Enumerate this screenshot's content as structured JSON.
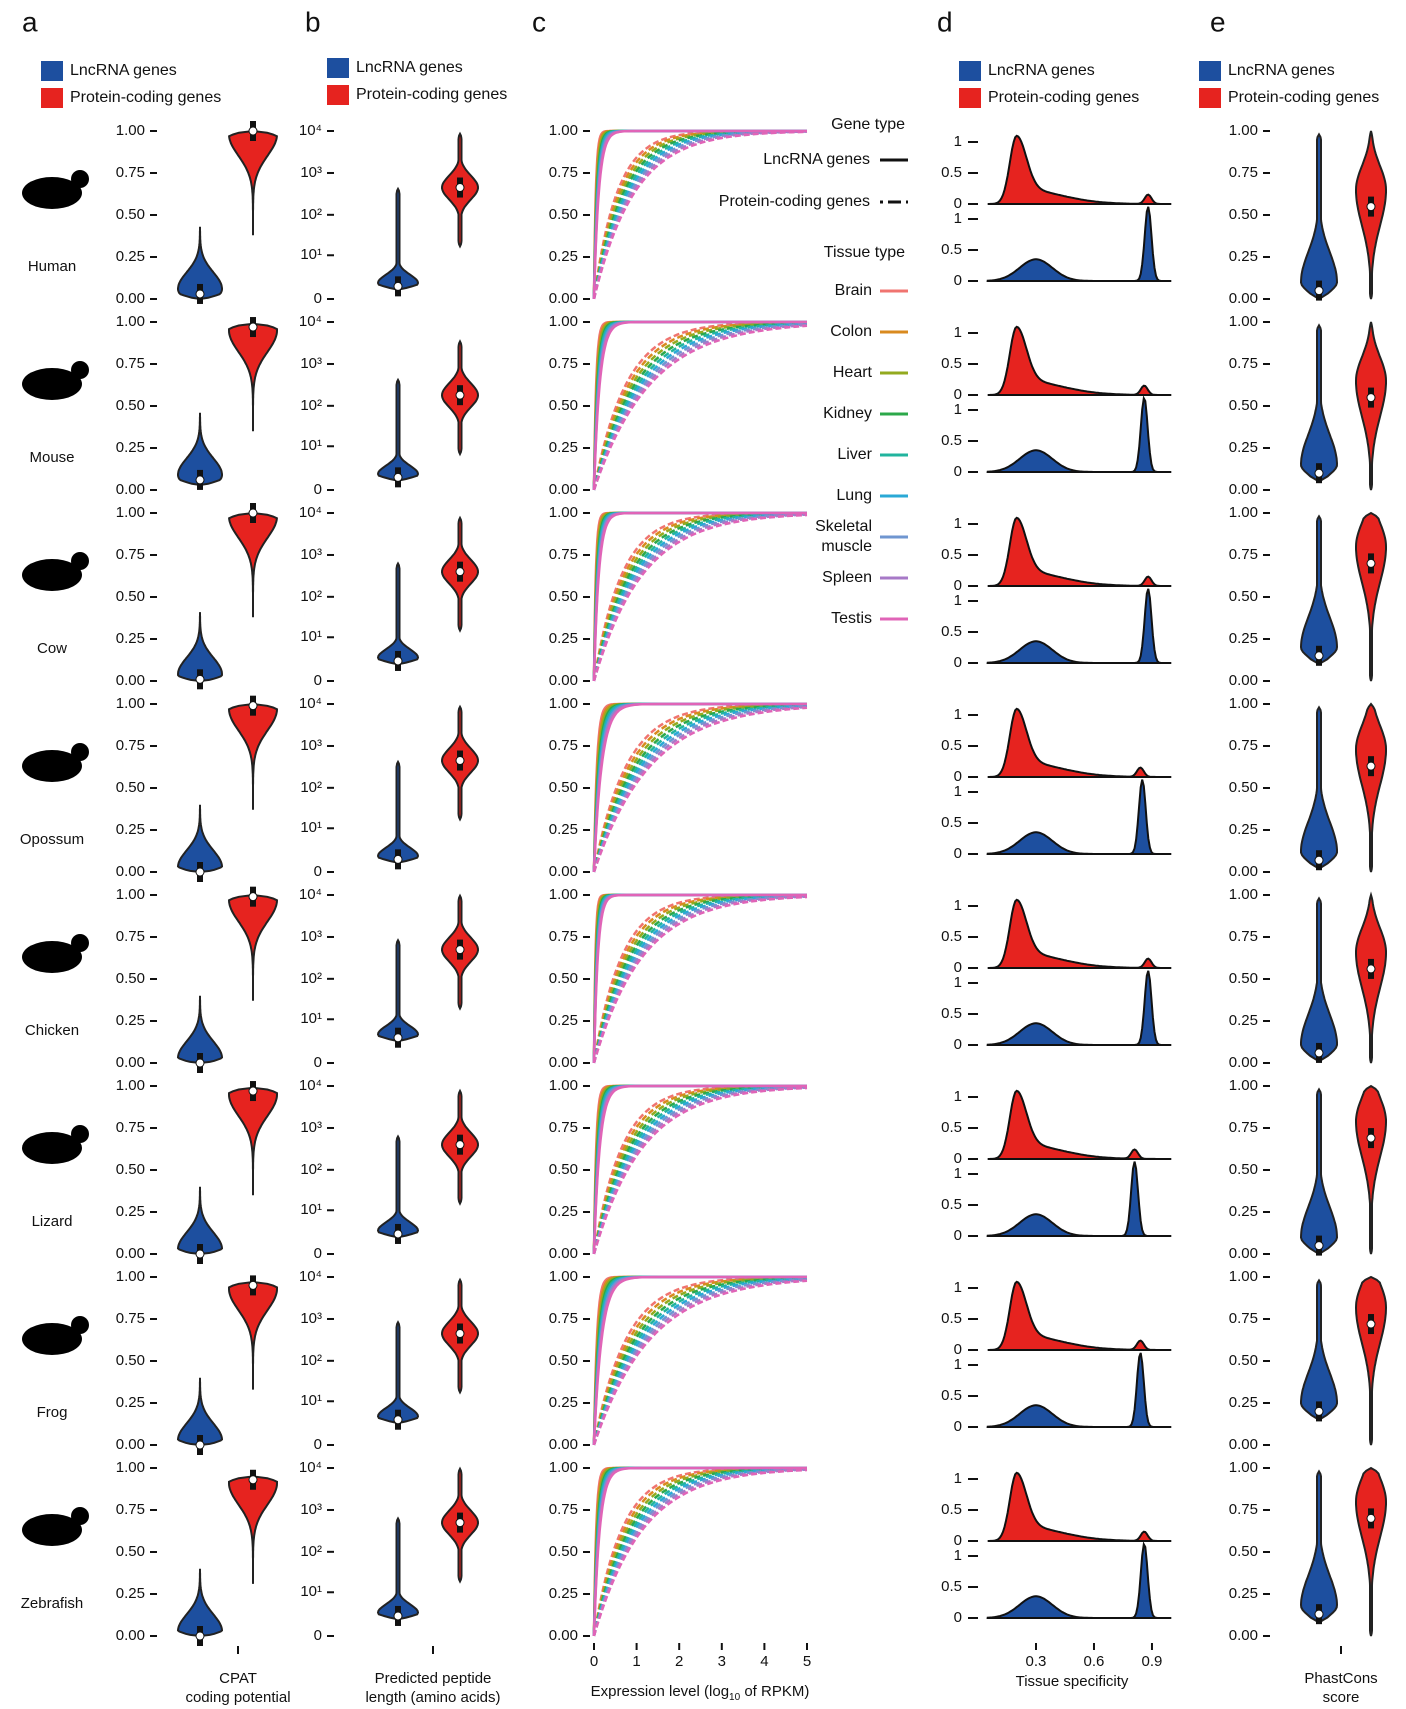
{
  "panel_labels": [
    "a",
    "b",
    "c",
    "d",
    "e"
  ],
  "legend": {
    "lncrna": "LncRNA genes",
    "protein": "Protein-coding genes"
  },
  "colors": {
    "lncrna": "#1d4f9f",
    "protein": "#e6231f"
  },
  "species": [
    "Human",
    "Mouse",
    "Cow",
    "Opossum",
    "Chicken",
    "Lizard",
    "Frog",
    "Zebrafish"
  ],
  "a": {
    "xlabel": [
      "CPAT",
      "coding potential"
    ],
    "ylim": [
      0,
      1
    ],
    "yticks": [
      {
        "value": 0,
        "label": "0.00"
      },
      {
        "value": 0.25,
        "label": "0.25"
      },
      {
        "value": 0.5,
        "label": "0.50"
      },
      {
        "value": 0.75,
        "label": "0.75"
      },
      {
        "value": 1,
        "label": "1.00"
      }
    ],
    "lncrna": [
      0.03,
      0.06,
      0.01,
      0,
      0,
      0,
      0,
      0
    ],
    "protein": [
      1,
      0.97,
      1,
      0.99,
      0.99,
      0.97,
      0.95,
      0.93
    ]
  },
  "b": {
    "xlabel": [
      "Predicted peptide",
      "length (amino acids)"
    ],
    "ylim": [
      0,
      10000
    ],
    "log": true,
    "yticks": [
      0,
      {
        "value": 10,
        "label": "10¹"
      },
      {
        "value": 100,
        "label": "10²"
      },
      {
        "value": 1000,
        "label": "10³"
      },
      {
        "value": 10000,
        "label": "10⁴"
      }
    ],
    "lncrna": [
      1,
      1,
      2,
      1,
      3,
      2,
      3,
      2
    ],
    "protein": [
      450,
      180,
      400,
      450,
      500,
      400,
      450,
      500
    ]
  },
  "c": {
    "xlabel": {
      "pre": "Expression level (log",
      "sub": "10",
      "post": " of RPKM)"
    },
    "xlim": [
      0,
      5
    ],
    "xticks": [
      0,
      1,
      2,
      3,
      4,
      5
    ],
    "ylim": [
      0,
      1
    ],
    "yticks": [
      {
        "value": 0,
        "label": "0.00"
      },
      {
        "value": 0.25,
        "label": "0.25"
      },
      {
        "value": 0.5,
        "label": "0.50"
      },
      {
        "value": 0.75,
        "label": "0.75"
      },
      {
        "value": 1,
        "label": "1.00"
      }
    ],
    "gene_type_title": "Gene type",
    "tissue_type_title": "Tissue type",
    "tissues": [
      {
        "name": [
          "Brain"
        ],
        "color": "#f07470"
      },
      {
        "name": [
          "Colon"
        ],
        "color": "#d98a1f"
      },
      {
        "name": [
          "Heart"
        ],
        "color": "#93aa1f"
      },
      {
        "name": [
          "Kidney"
        ],
        "color": "#2ca84a"
      },
      {
        "name": [
          "Liver"
        ],
        "color": "#21b49e"
      },
      {
        "name": [
          "Lung"
        ],
        "color": "#2aa9d6"
      },
      {
        "name": [
          "Skeletal",
          "muscle"
        ],
        "color": "#6f96d0"
      },
      {
        "name": [
          "Spleen"
        ],
        "color": "#a779c7"
      },
      {
        "name": [
          "Testis"
        ],
        "color": "#e064b7"
      }
    ],
    "lncrna": [
      0.05,
      0.06,
      0.05,
      0.08,
      0.04,
      0.06,
      0.08,
      0.06
    ],
    "protein": [
      0.5,
      0.7,
      0.6,
      0.7,
      0.6,
      0.6,
      0.7,
      0.6
    ]
  },
  "d": {
    "xlabel": "Tissue specificity",
    "xlim": [
      0,
      1.05
    ],
    "xticks": [
      0.3,
      0.6,
      0.9
    ],
    "ylim": [
      0,
      1.25
    ],
    "yticks": [
      0,
      0.5,
      1
    ],
    "lncrna": [
      0.88,
      0.86,
      0.88,
      0.85,
      0.88,
      0.81,
      0.84,
      0.86
    ],
    "protein": [
      0.88,
      0.86,
      0.88,
      0.84,
      0.88,
      0.81,
      0.84,
      0.86
    ]
  },
  "e": {
    "xlabel": [
      "PhastCons",
      "score"
    ],
    "ylim": [
      0,
      1
    ],
    "yticks": [
      {
        "value": 0,
        "label": "0.00"
      },
      {
        "value": 0.25,
        "label": "0.25"
      },
      {
        "value": 0.5,
        "label": "0.50"
      },
      {
        "value": 0.75,
        "label": "0.75"
      },
      {
        "value": 1,
        "label": "1.00"
      }
    ],
    "lncrna": [
      0.05,
      0.1,
      0.15,
      0.07,
      0.06,
      0.05,
      0.2,
      0.13
    ],
    "protein": [
      0.55,
      0.55,
      0.7,
      0.63,
      0.56,
      0.69,
      0.72,
      0.7
    ]
  }
}
